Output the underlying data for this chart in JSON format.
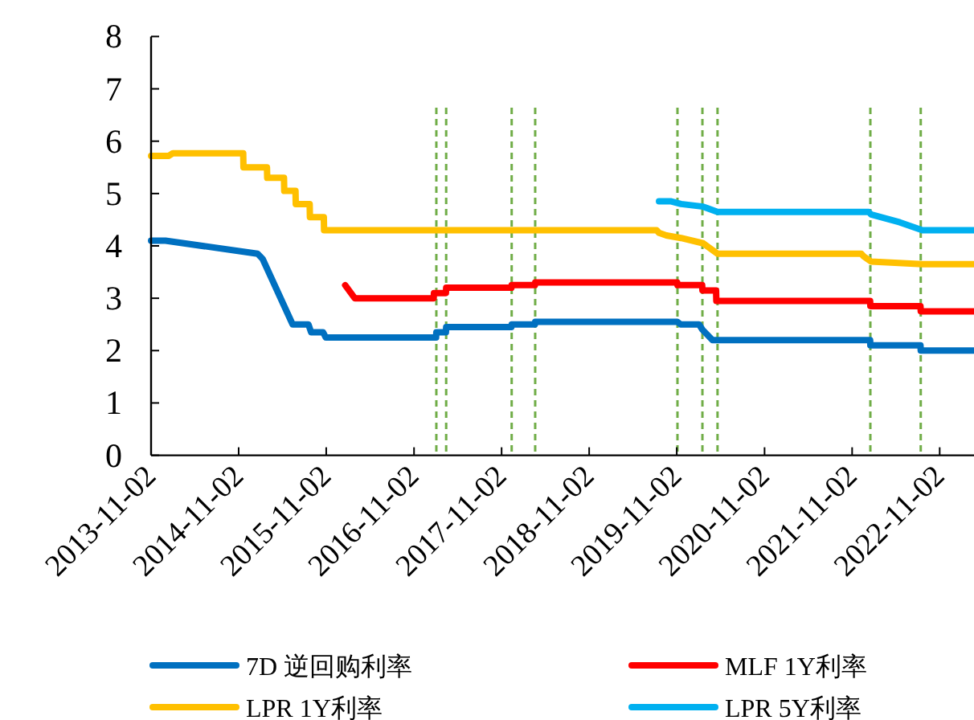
{
  "chart_data": {
    "type": "line",
    "xlim": [
      "2013-11-02",
      "2023-03-25"
    ],
    "ylim": [
      0,
      8
    ],
    "yticks": [
      0,
      1,
      2,
      3,
      4,
      5,
      6,
      7,
      8
    ],
    "xticks": [
      "2013-11-02",
      "2014-11-02",
      "2015-11-02",
      "2016-11-02",
      "2017-11-02",
      "2018-11-02",
      "2019-11-02",
      "2020-11-02",
      "2021-11-02",
      "2022-11-02"
    ],
    "legend": "bottom",
    "grid": false,
    "marker": "none",
    "line_style": "solid",
    "series": [
      {
        "name": "7D 逆回购利率",
        "color": "#0070c0",
        "x": [
          "2013-11-02",
          "2014-01-01",
          "2015-01-20",
          "2015-02-10",
          "2015-06-15",
          "2015-08-20",
          "2015-08-31",
          "2015-10-20",
          "2015-10-31",
          "2017-02-02",
          "2017-02-03",
          "2017-03-15",
          "2017-03-16",
          "2017-12-13",
          "2017-12-14",
          "2018-03-21",
          "2018-03-22",
          "2019-11-04",
          "2019-11-18",
          "2020-02-03",
          "2020-02-17",
          "2020-03-30",
          "2022-01-16",
          "2022-01-17",
          "2022-08-14",
          "2022-08-15",
          "2023-03-25"
        ],
        "values": [
          4.1,
          4.1,
          3.85,
          3.75,
          2.5,
          2.5,
          2.35,
          2.35,
          2.25,
          2.25,
          2.35,
          2.35,
          2.45,
          2.45,
          2.5,
          2.5,
          2.55,
          2.55,
          2.5,
          2.5,
          2.4,
          2.2,
          2.2,
          2.1,
          2.1,
          2.0,
          2.0
        ]
      },
      {
        "name": "MLF 1Y利率",
        "color": "#ff0000",
        "x": [
          "2016-01-20",
          "2016-02-29",
          "2017-01-23",
          "2017-01-24",
          "2017-03-15",
          "2017-03-16",
          "2017-12-13",
          "2017-12-14",
          "2018-03-21",
          "2018-03-22",
          "2019-11-04",
          "2019-11-05",
          "2020-02-16",
          "2020-02-17",
          "2020-04-14",
          "2020-04-15",
          "2022-01-16",
          "2022-01-17",
          "2022-08-14",
          "2022-08-15",
          "2023-03-25"
        ],
        "values": [
          3.25,
          3.0,
          3.0,
          3.1,
          3.1,
          3.2,
          3.2,
          3.25,
          3.25,
          3.3,
          3.3,
          3.25,
          3.25,
          3.15,
          3.15,
          2.95,
          2.95,
          2.85,
          2.85,
          2.75,
          2.75
        ]
      },
      {
        "name": "LPR 1Y利率",
        "color": "#ffc000",
        "x": [
          "2013-11-02",
          "2014-01-15",
          "2014-02-01",
          "2014-11-21",
          "2014-11-22",
          "2015-02-28",
          "2015-03-01",
          "2015-05-10",
          "2015-05-11",
          "2015-06-27",
          "2015-06-28",
          "2015-08-25",
          "2015-08-26",
          "2015-10-23",
          "2015-10-24",
          "2019-08-10",
          "2019-08-20",
          "2019-09-20",
          "2019-11-20",
          "2020-02-20",
          "2020-04-20",
          "2021-12-10",
          "2021-12-20",
          "2022-01-20",
          "2022-08-22",
          "2023-03-25"
        ],
        "values": [
          5.72,
          5.72,
          5.77,
          5.77,
          5.5,
          5.5,
          5.3,
          5.3,
          5.05,
          5.05,
          4.8,
          4.8,
          4.55,
          4.55,
          4.3,
          4.3,
          4.25,
          4.2,
          4.15,
          4.05,
          3.85,
          3.85,
          3.8,
          3.7,
          3.65,
          3.65
        ]
      },
      {
        "name": "LPR 5Y利率",
        "color": "#00b0f0",
        "x": [
          "2019-08-20",
          "2019-10-10",
          "2019-11-20",
          "2020-02-20",
          "2020-04-20",
          "2022-01-10",
          "2022-01-20",
          "2022-05-20",
          "2022-08-22",
          "2023-03-25"
        ],
        "values": [
          4.85,
          4.85,
          4.8,
          4.75,
          4.65,
          4.65,
          4.6,
          4.45,
          4.3,
          4.3
        ]
      }
    ],
    "ref_lines": [
      {
        "axis": "x",
        "value": "2017-02-03",
        "color": "#70ad47",
        "line_style": "dashed"
      },
      {
        "axis": "x",
        "value": "2017-03-16",
        "color": "#70ad47",
        "line_style": "dashed"
      },
      {
        "axis": "x",
        "value": "2017-12-14",
        "color": "#70ad47",
        "line_style": "dashed"
      },
      {
        "axis": "x",
        "value": "2018-03-22",
        "color": "#70ad47",
        "line_style": "dashed"
      },
      {
        "axis": "x",
        "value": "2019-11-05",
        "color": "#70ad47",
        "line_style": "dashed"
      },
      {
        "axis": "x",
        "value": "2020-02-17",
        "color": "#70ad47",
        "line_style": "dashed"
      },
      {
        "axis": "x",
        "value": "2020-04-20",
        "color": "#70ad47",
        "line_style": "dashed"
      },
      {
        "axis": "x",
        "value": "2022-01-17",
        "color": "#70ad47",
        "line_style": "dashed"
      },
      {
        "axis": "x",
        "value": "2022-08-15",
        "color": "#70ad47",
        "line_style": "dashed"
      }
    ]
  }
}
